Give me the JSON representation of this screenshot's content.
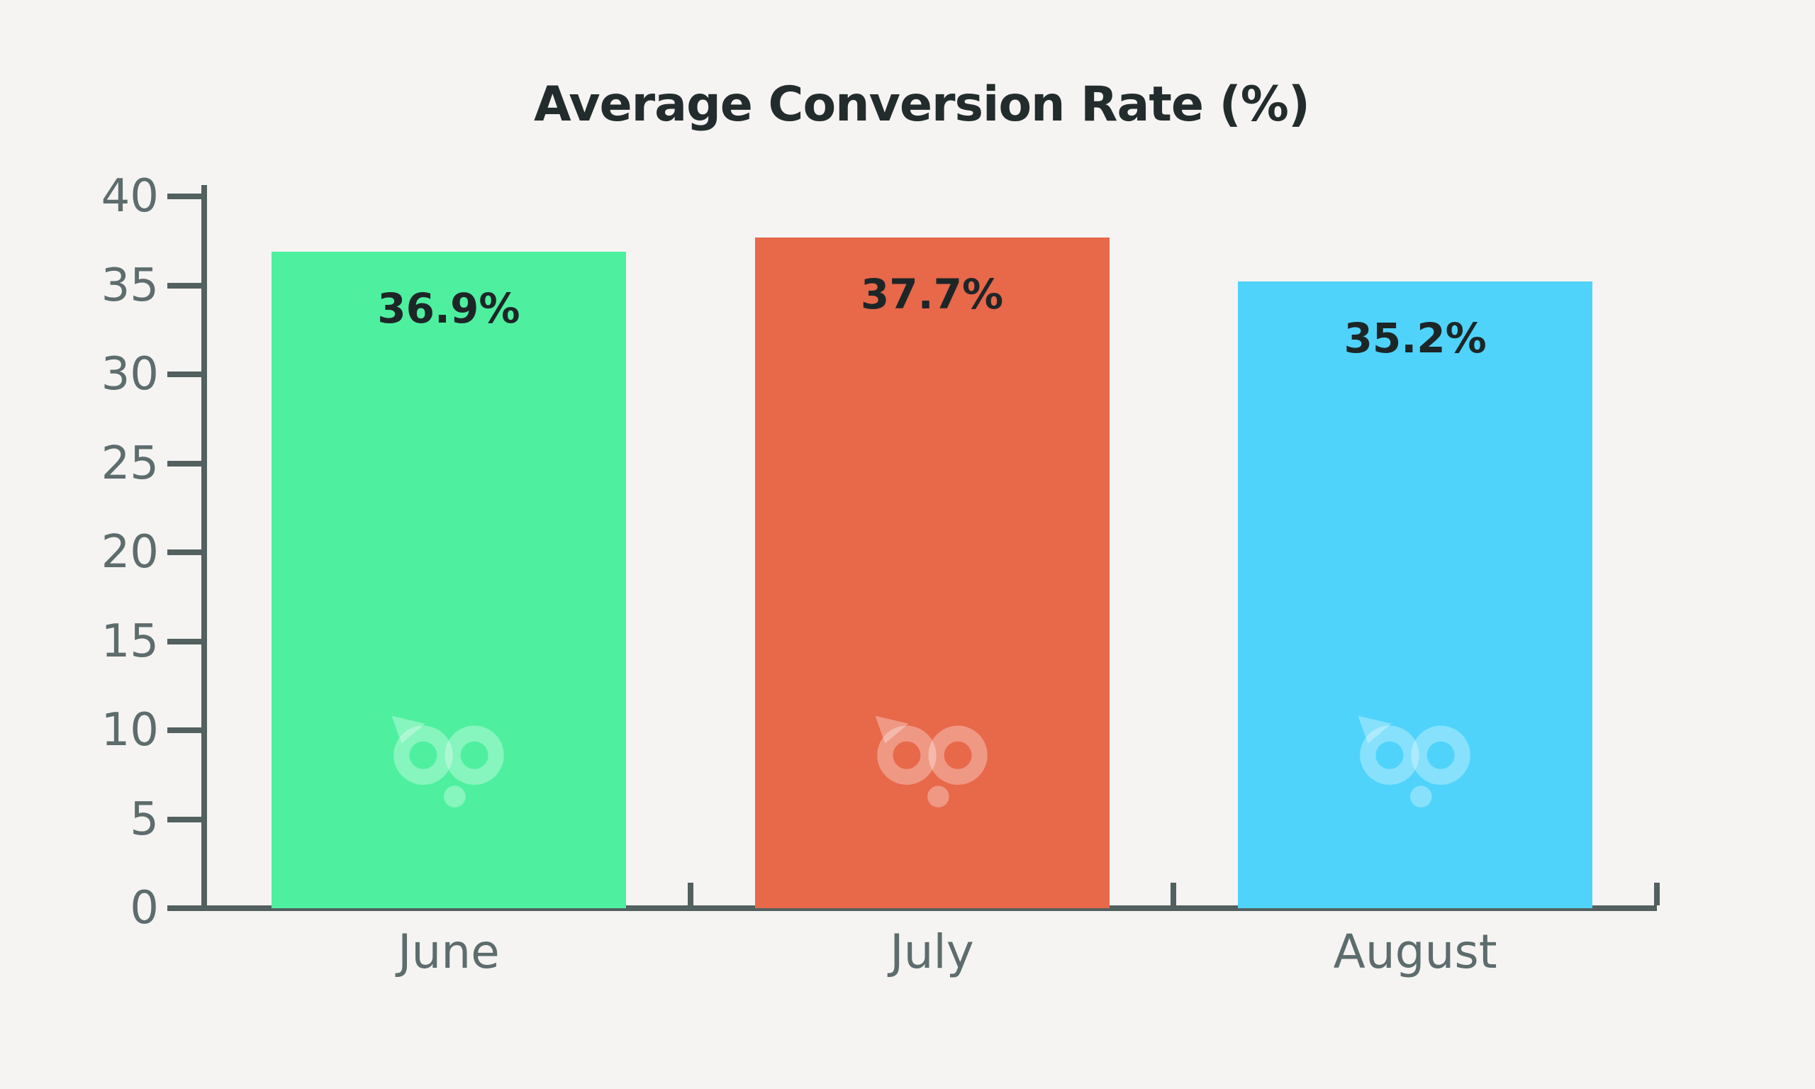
{
  "background_color": "#f5f4f2",
  "chart_data": {
    "type": "bar",
    "title": "Average Conversion Rate (%)",
    "categories": [
      "June",
      "July",
      "August"
    ],
    "values": [
      36.9,
      37.7,
      35.2
    ],
    "value_labels": [
      "36.9%",
      "37.7%",
      "35.2%"
    ],
    "bar_colors": [
      "#4ef0a0",
      "#e8684a",
      "#4fd3fb"
    ],
    "ylim": [
      0,
      40
    ],
    "yticks": [
      0,
      5,
      10,
      15,
      20,
      25,
      30,
      35,
      40
    ],
    "xlabel": "",
    "ylabel": "",
    "grid": false,
    "legend": "none",
    "axis_color": "#52605f",
    "tick_label_color": "#5d6c6c",
    "title_color": "#232c2c",
    "value_label_color": "#1d2627",
    "watermark": "bp"
  }
}
